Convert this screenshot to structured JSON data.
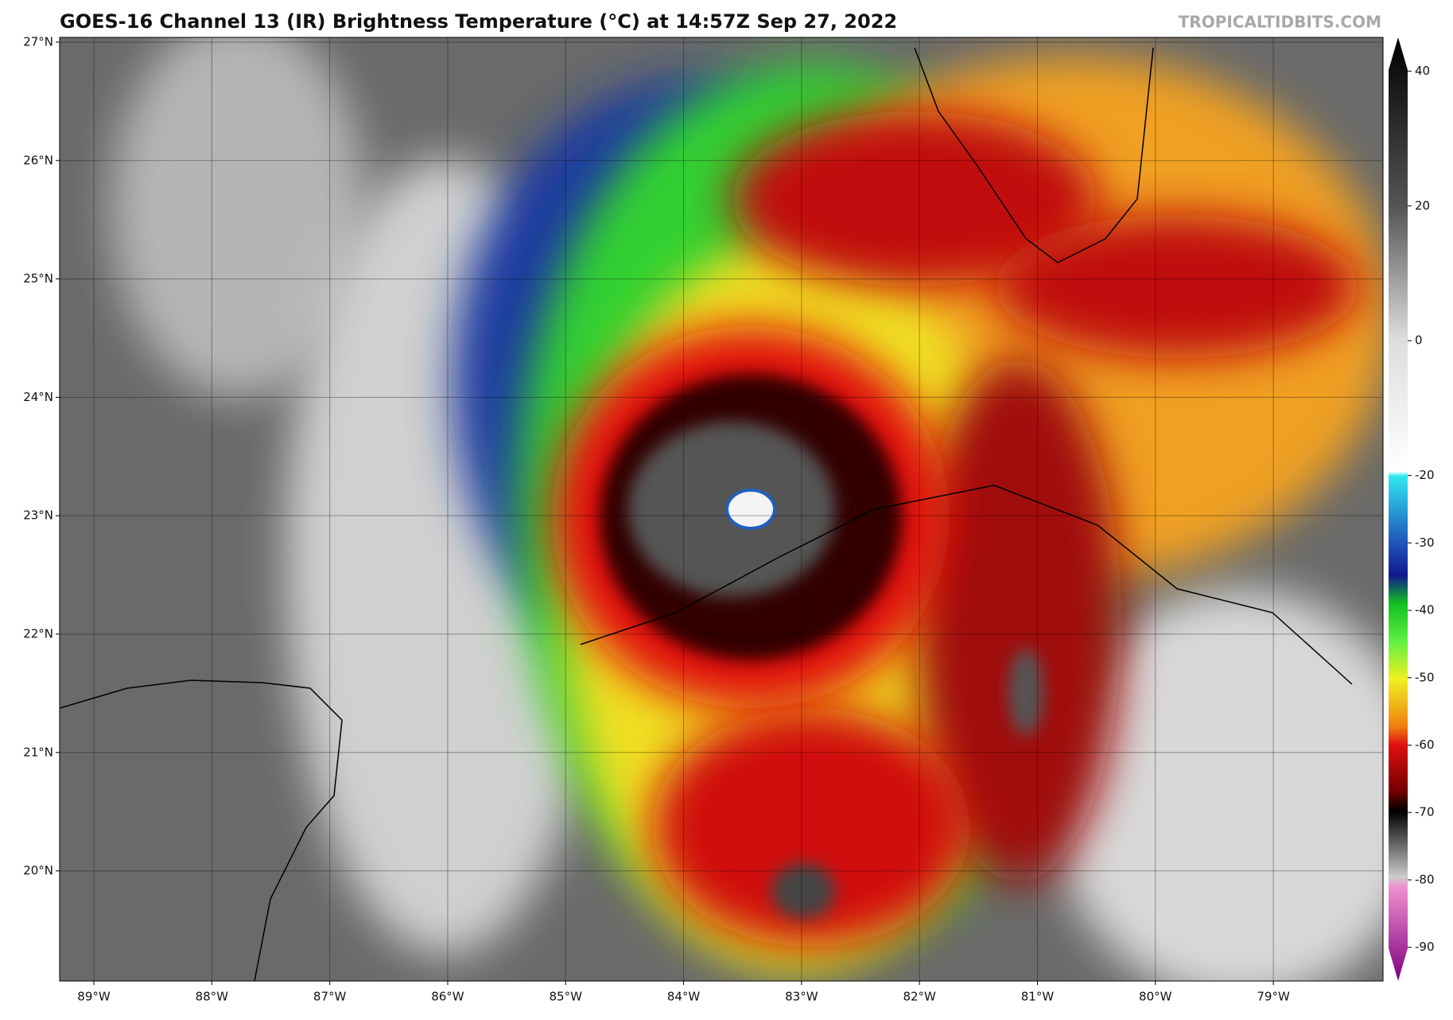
{
  "title": "GOES-16 Channel 13 (IR) Brightness Temperature (°C) at 14:57Z Sep 27, 2022",
  "watermark": "TROPICALTIDBITS.COM",
  "map": {
    "lon_range": [
      -89.29,
      -78.07
    ],
    "lat_range": [
      19.07,
      27.04
    ],
    "lon_ticks": [
      {
        "value": -89,
        "label": "89°W"
      },
      {
        "value": -88,
        "label": "88°W"
      },
      {
        "value": -87,
        "label": "87°W"
      },
      {
        "value": -86,
        "label": "86°W"
      },
      {
        "value": -85,
        "label": "85°W"
      },
      {
        "value": -84,
        "label": "84°W"
      },
      {
        "value": -83,
        "label": "83°W"
      },
      {
        "value": -82,
        "label": "82°W"
      },
      {
        "value": -81,
        "label": "81°W"
      },
      {
        "value": -80,
        "label": "80°W"
      },
      {
        "value": -79,
        "label": "79°W"
      }
    ],
    "lat_ticks": [
      {
        "value": 27,
        "label": "27°N"
      },
      {
        "value": 26,
        "label": "26°N"
      },
      {
        "value": 25,
        "label": "25°N"
      },
      {
        "value": 24,
        "label": "24°N"
      },
      {
        "value": 23,
        "label": "23°N"
      },
      {
        "value": 22,
        "label": "22°N"
      },
      {
        "value": 21,
        "label": "21°N"
      },
      {
        "value": 20,
        "label": "20°N"
      }
    ]
  },
  "colorbar": {
    "range": [
      -95,
      45
    ],
    "ticks": [
      40,
      20,
      0,
      -20,
      -30,
      -40,
      -50,
      -60,
      -70,
      -80,
      -90
    ]
  }
}
